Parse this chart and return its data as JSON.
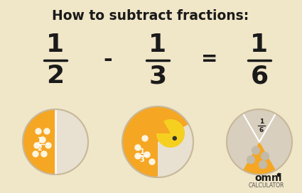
{
  "title": "How to subtract fractions:",
  "bg_color": "#f0e6c8",
  "title_color": "#1a1a1a",
  "fraction1_num": "1",
  "fraction1_den": "2",
  "fraction2_num": "1",
  "fraction2_den": "3",
  "fraction3_num": "1",
  "fraction3_den": "6",
  "minus_sign": "-",
  "equals_sign": "=",
  "orange_color": "#f5a623",
  "circle_bg": "#e8e0d0",
  "eaten_bg": "#d8cfbe",
  "pacman_color": "#f5d020",
  "dot_color": "#fdf5e0",
  "outline_color": "#c8b89a",
  "white_color": "#ffffff",
  "omni_text": "omni",
  "calc_text": "CALCULATOR",
  "label_color": "#1a1a1a",
  "logo_color": "#1a1a1a",
  "calc_color": "#555555"
}
